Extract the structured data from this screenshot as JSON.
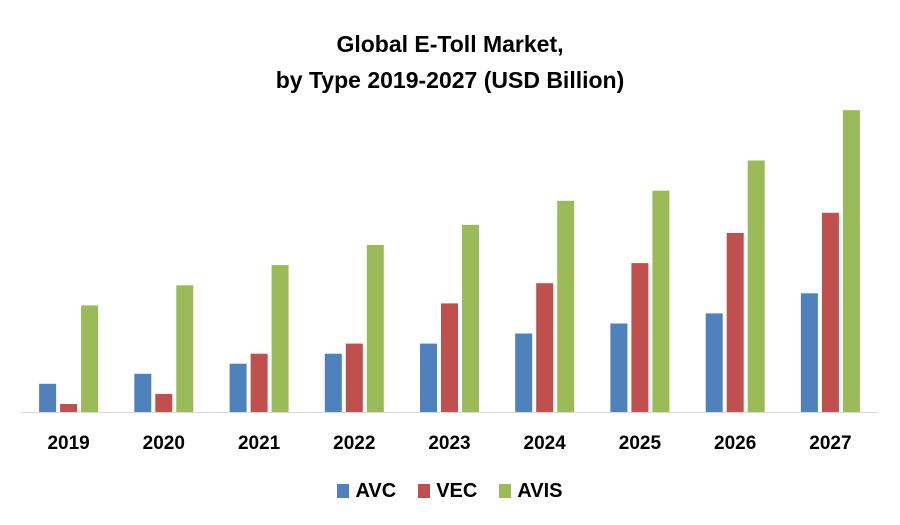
{
  "title_line1": "Global E-Toll Market,",
  "title_line2": "by Type 2019-2027 (USD Billion)",
  "chart_data": {
    "type": "bar",
    "categories": [
      "2019",
      "2020",
      "2021",
      "2022",
      "2023",
      "2024",
      "2025",
      "2026",
      "2027"
    ],
    "series": [
      {
        "name": "AVC",
        "color": "#4F81BD",
        "values": [
          1.4,
          1.9,
          2.4,
          2.9,
          3.4,
          3.9,
          4.4,
          4.9,
          5.9
        ]
      },
      {
        "name": "VEC",
        "color": "#C0504D",
        "values": [
          0.4,
          0.9,
          2.9,
          3.4,
          5.4,
          6.4,
          7.4,
          8.9,
          9.9
        ]
      },
      {
        "name": "AVIS",
        "color": "#9BBB59",
        "values": [
          5.3,
          6.3,
          7.3,
          8.3,
          9.3,
          10.5,
          11.0,
          12.5,
          15.0
        ]
      }
    ],
    "ylim": [
      0,
      17
    ],
    "grid": false,
    "legend_position": "bottom"
  }
}
